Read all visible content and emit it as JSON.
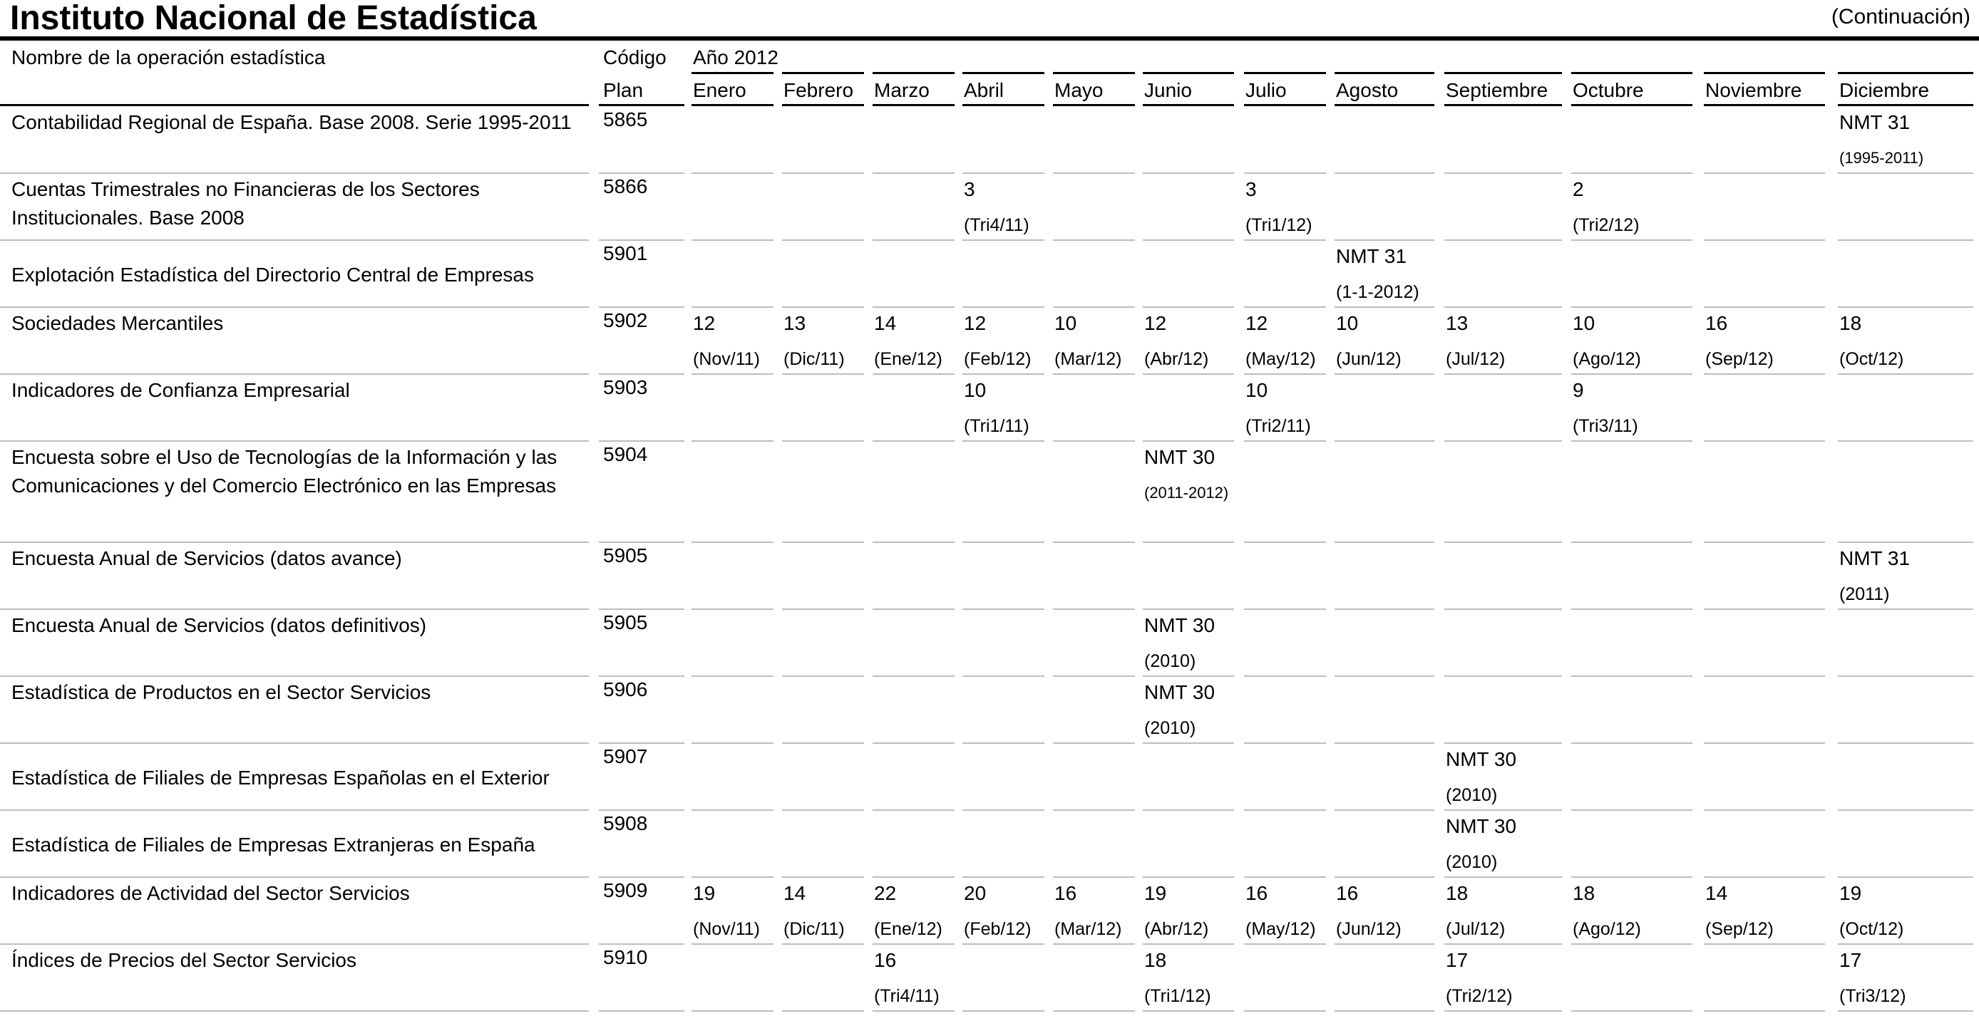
{
  "header": {
    "title": "Instituto Nacional de Estadística",
    "continuation": "(Continuación)"
  },
  "columns": {
    "name_header": "Nombre de la operación estadística",
    "code_header_line1": "Código",
    "code_header_line2": "Plan",
    "year_header": "Año 2012",
    "months": [
      "Enero",
      "Febrero",
      "Marzo",
      "Abril",
      "Mayo",
      "Junio",
      "Julio",
      "Agosto",
      "Septiembre",
      "Octubre",
      "Noviembre",
      "Diciembre"
    ]
  },
  "rows": [
    {
      "name": "Contabilidad Regional de España. Base 2008. Serie 1995-2011",
      "code": "5865",
      "cells": [
        null,
        null,
        null,
        null,
        null,
        null,
        null,
        null,
        null,
        null,
        null,
        {
          "v": "NMT 31",
          "p": "(1995-2011)"
        }
      ]
    },
    {
      "name": "Cuentas Trimestrales no Financieras de los Sectores Institucionales. Base 2008",
      "code": "5866",
      "cells": [
        null,
        null,
        null,
        {
          "v": "3",
          "p": "(Tri4/11)"
        },
        null,
        null,
        {
          "v": "3",
          "p": "(Tri1/12)"
        },
        null,
        null,
        {
          "v": "2",
          "p": "(Tri2/12)"
        },
        null,
        null
      ]
    },
    {
      "name": "Explotación Estadística del Directorio Central de Empresas",
      "code": "5901",
      "cells": [
        null,
        null,
        null,
        null,
        null,
        null,
        null,
        {
          "v": "NMT 31",
          "p": "(1-1-2012)"
        },
        null,
        null,
        null,
        null
      ]
    },
    {
      "name": "Sociedades Mercantiles",
      "code": "5902",
      "cells": [
        {
          "v": "12",
          "p": "(Nov/11)"
        },
        {
          "v": "13",
          "p": "(Dic/11)"
        },
        {
          "v": "14",
          "p": "(Ene/12)"
        },
        {
          "v": "12",
          "p": "(Feb/12)"
        },
        {
          "v": "10",
          "p": "(Mar/12)"
        },
        {
          "v": "12",
          "p": "(Abr/12)"
        },
        {
          "v": "12",
          "p": "(May/12)"
        },
        {
          "v": "10",
          "p": "(Jun/12)"
        },
        {
          "v": "13",
          "p": "(Jul/12)"
        },
        {
          "v": "10",
          "p": "(Ago/12)"
        },
        {
          "v": "16",
          "p": "(Sep/12)"
        },
        {
          "v": "18",
          "p": "(Oct/12)"
        }
      ]
    },
    {
      "name": "Indicadores de Confianza Empresarial",
      "code": "5903",
      "cells": [
        null,
        null,
        null,
        {
          "v": "10",
          "p": "(Tri1/11)"
        },
        null,
        null,
        {
          "v": "10",
          "p": "(Tri2/11)"
        },
        null,
        null,
        {
          "v": "9",
          "p": "(Tri3/11)"
        },
        null,
        null
      ]
    },
    {
      "name": "Encuesta sobre el Uso de Tecnologías de la Información y las Comunicaciones y del Comercio Electrónico en las Empresas",
      "code": "5904",
      "cells": [
        null,
        null,
        null,
        null,
        null,
        {
          "v": "NMT 30",
          "p": "(2011-2012)"
        },
        null,
        null,
        null,
        null,
        null,
        null
      ]
    },
    {
      "name": "Encuesta Anual de Servicios (datos avance)",
      "code": "5905",
      "cells": [
        null,
        null,
        null,
        null,
        null,
        null,
        null,
        null,
        null,
        null,
        null,
        {
          "v": "NMT 31",
          "p": "(2011)"
        }
      ]
    },
    {
      "name": "Encuesta Anual de Servicios (datos definitivos)",
      "code": "5905",
      "cells": [
        null,
        null,
        null,
        null,
        null,
        {
          "v": "NMT 30",
          "p": "(2010)"
        },
        null,
        null,
        null,
        null,
        null,
        null
      ]
    },
    {
      "name": "Estadística de Productos en el Sector Servicios",
      "code": "5906",
      "cells": [
        null,
        null,
        null,
        null,
        null,
        {
          "v": "NMT 30",
          "p": "(2010)"
        },
        null,
        null,
        null,
        null,
        null,
        null
      ]
    },
    {
      "name": "Estadística de Filiales de Empresas Españolas en el Exterior",
      "code": "5907",
      "cells": [
        null,
        null,
        null,
        null,
        null,
        null,
        null,
        null,
        {
          "v": "NMT 30",
          "p": "(2010)"
        },
        null,
        null,
        null
      ]
    },
    {
      "name": "Estadística de Filiales de Empresas Extranjeras en España",
      "code": "5908",
      "cells": [
        null,
        null,
        null,
        null,
        null,
        null,
        null,
        null,
        {
          "v": "NMT 30",
          "p": "(2010)"
        },
        null,
        null,
        null
      ]
    },
    {
      "name": "Indicadores de Actividad del Sector Servicios",
      "code": "5909",
      "cells": [
        {
          "v": "19",
          "p": "(Nov/11)"
        },
        {
          "v": "14",
          "p": "(Dic/11)"
        },
        {
          "v": "22",
          "p": "(Ene/12)"
        },
        {
          "v": "20",
          "p": "(Feb/12)"
        },
        {
          "v": "16",
          "p": "(Mar/12)"
        },
        {
          "v": "19",
          "p": "(Abr/12)"
        },
        {
          "v": "16",
          "p": "(May/12)"
        },
        {
          "v": "16",
          "p": "(Jun/12)"
        },
        {
          "v": "18",
          "p": "(Jul/12)"
        },
        {
          "v": "18",
          "p": "(Ago/12)"
        },
        {
          "v": "14",
          "p": "(Sep/12)"
        },
        {
          "v": "19",
          "p": "(Oct/12)"
        }
      ]
    },
    {
      "name": "Índices de Precios del Sector Servicios",
      "code": "5910",
      "cells": [
        null,
        null,
        {
          "v": "16",
          "p": "(Tri4/11)"
        },
        null,
        null,
        {
          "v": "18",
          "p": "(Tri1/12)"
        },
        null,
        null,
        {
          "v": "17",
          "p": "(Tri2/12)"
        },
        null,
        null,
        {
          "v": "17",
          "p": "(Tri3/12)"
        }
      ]
    }
  ]
}
